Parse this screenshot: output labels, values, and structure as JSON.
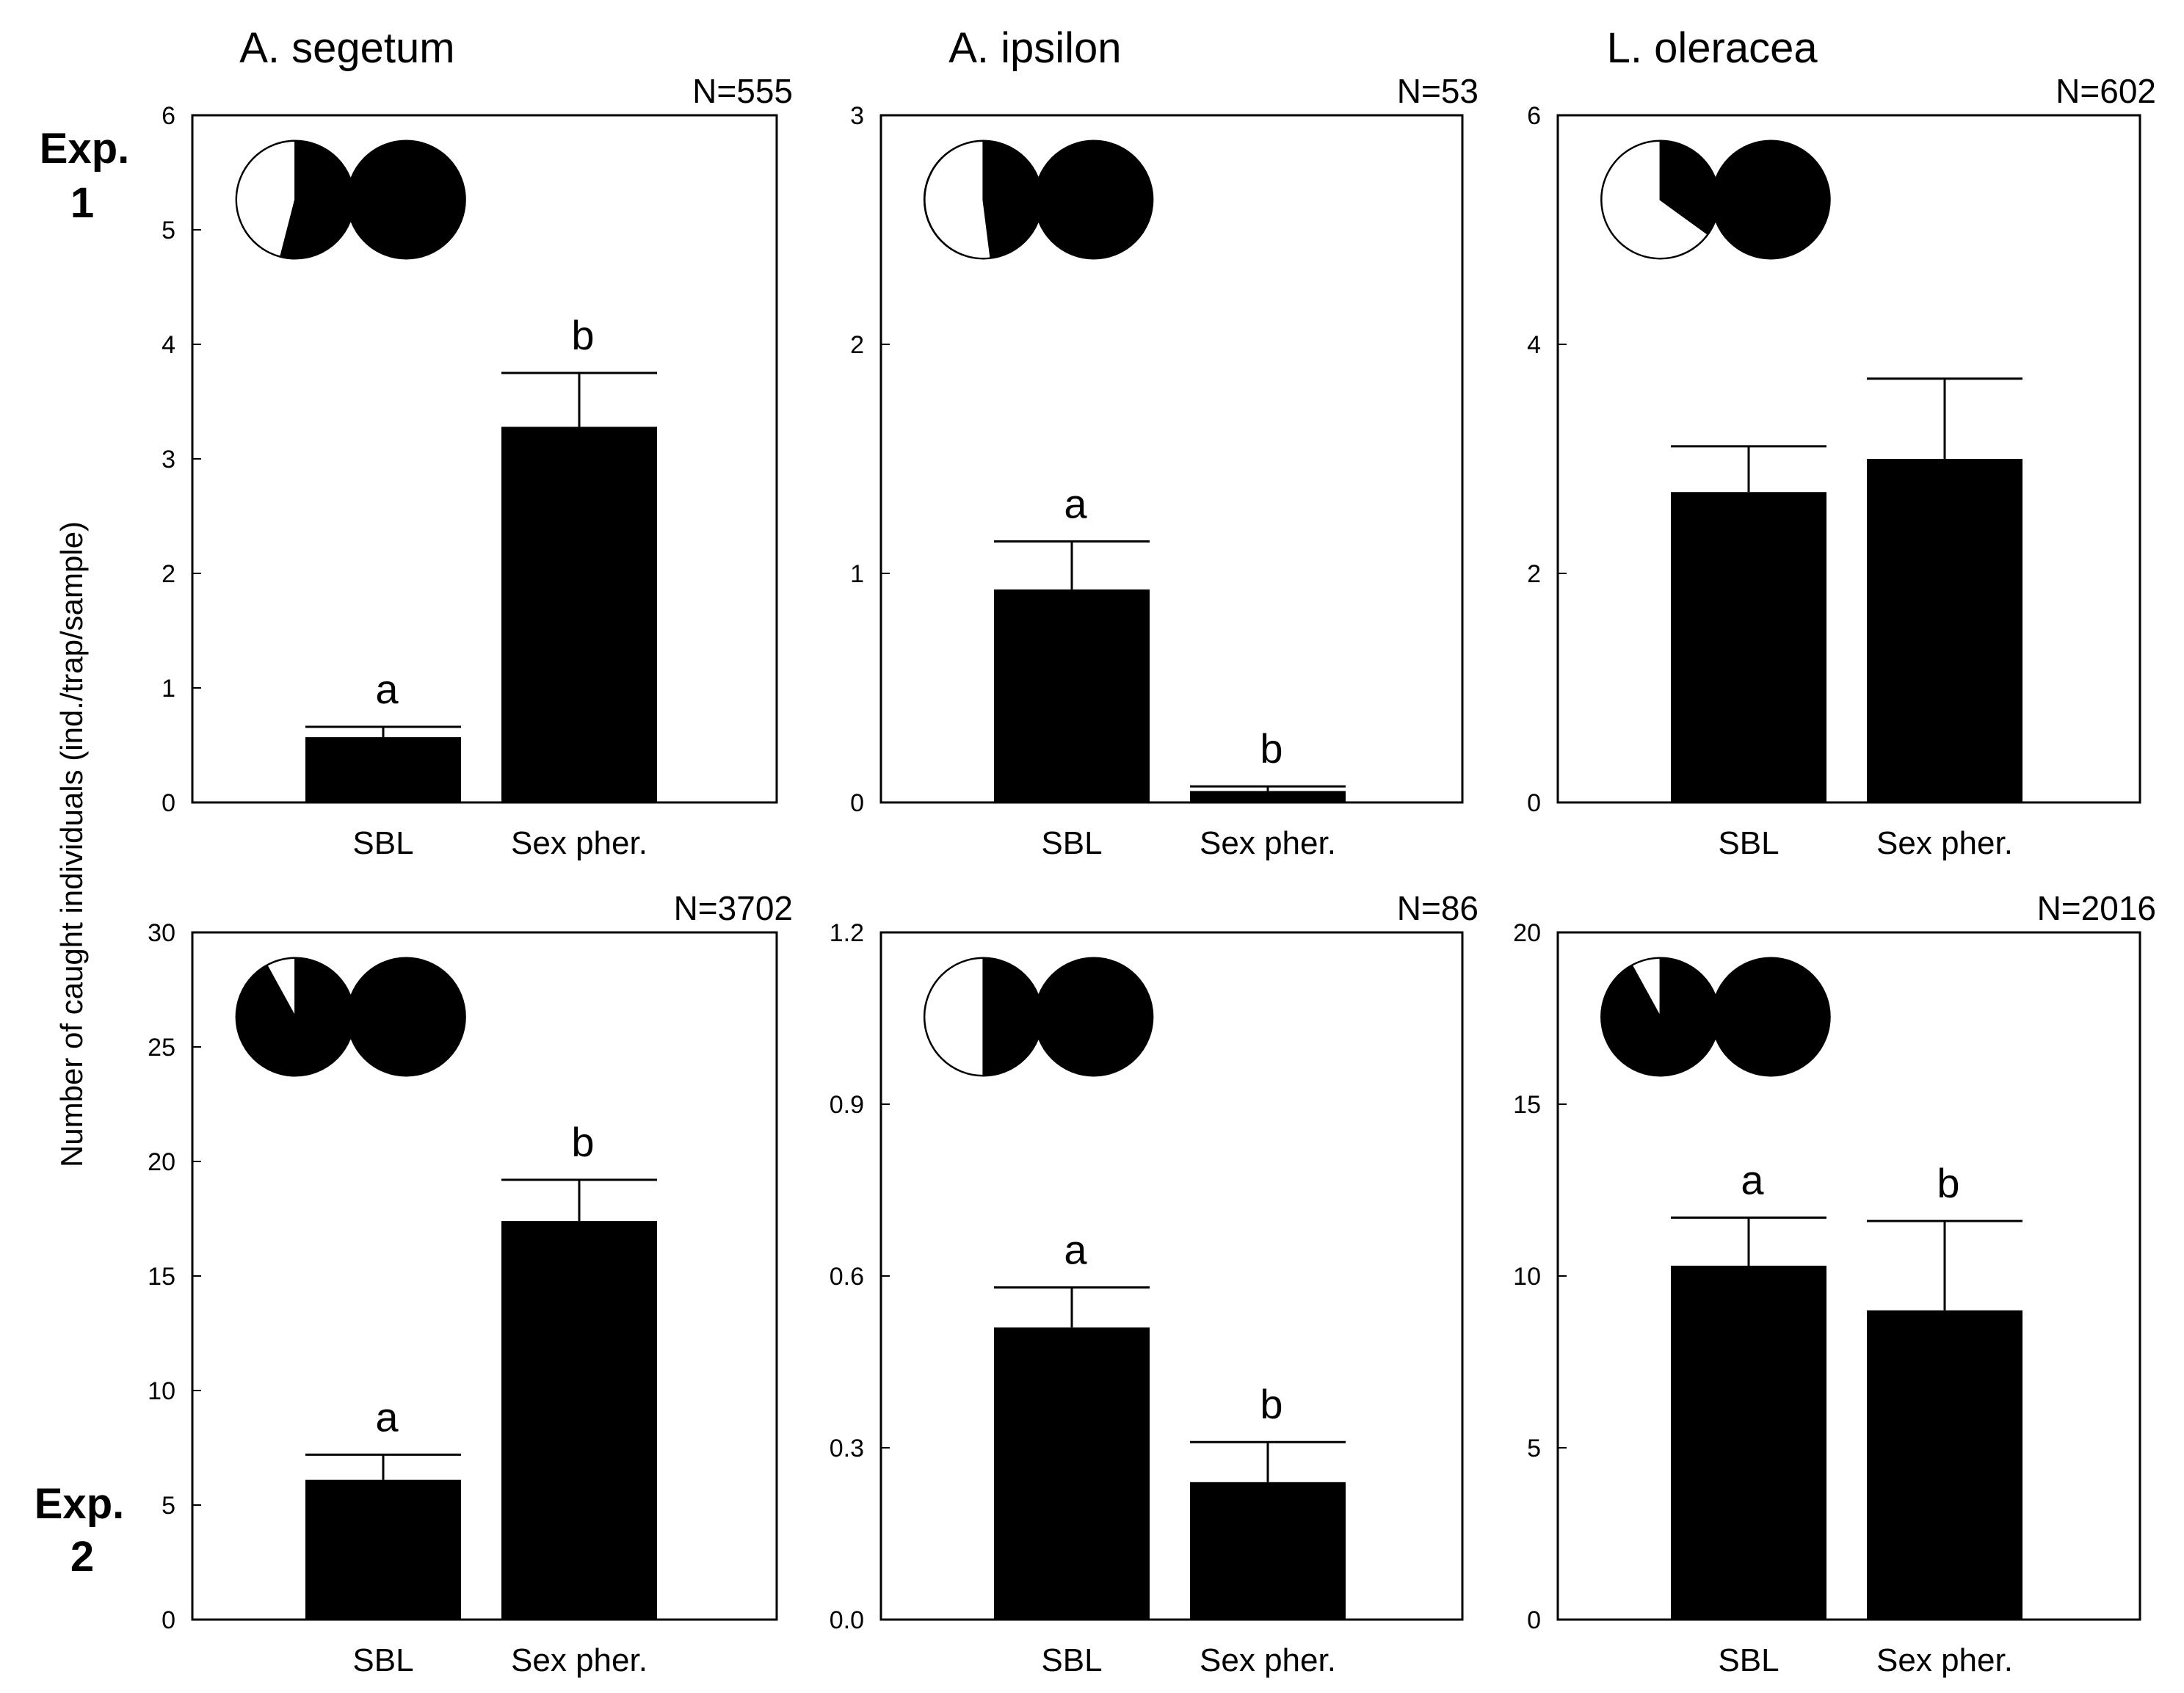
{
  "figure": {
    "y_axis_label": "Number of caught individuals (ind./trap/sample)",
    "experiment_labels": [
      {
        "line1": "Exp.",
        "line2": "1"
      },
      {
        "line1": "Exp.",
        "line2": "2"
      }
    ],
    "species_titles": [
      "A. segetum",
      "A. ipsilon",
      "L. oleracea"
    ]
  },
  "chart_data": [
    {
      "type": "bar",
      "experiment": "Exp. 1",
      "title": "A. segetum",
      "n_label": "N=555",
      "categories": [
        "SBL",
        "Sex pher."
      ],
      "values": [
        0.57,
        3.28
      ],
      "error": [
        0.09,
        0.47
      ],
      "letters": [
        "a",
        "b"
      ],
      "ylim": [
        0,
        6
      ],
      "yticks": [
        "0",
        "1",
        "2",
        "3",
        "4",
        "5",
        "6"
      ],
      "pie_female_fraction": [
        0.46,
        0.0
      ]
    },
    {
      "type": "bar",
      "experiment": "Exp. 1",
      "title": "A. ipsilon",
      "n_label": "N=53",
      "categories": [
        "SBL",
        "Sex pher."
      ],
      "values": [
        0.93,
        0.05
      ],
      "error": [
        0.21,
        0.02
      ],
      "letters": [
        "a",
        "b"
      ],
      "ylim": [
        0,
        3
      ],
      "yticks": [
        "0",
        "1",
        "2",
        "3"
      ],
      "pie_female_fraction": [
        0.52,
        0.0
      ]
    },
    {
      "type": "bar",
      "experiment": "Exp. 1",
      "title": "L. oleracea",
      "n_label": "N=602",
      "categories": [
        "SBL",
        "Sex pher."
      ],
      "values": [
        2.71,
        3.0
      ],
      "error": [
        0.4,
        0.7
      ],
      "letters": [
        "",
        ""
      ],
      "ylim": [
        0,
        6
      ],
      "yticks": [
        "0",
        "2",
        "4",
        "6"
      ],
      "pie_female_fraction": [
        0.65,
        0.0
      ]
    },
    {
      "type": "bar",
      "experiment": "Exp. 2",
      "title": "A. segetum",
      "n_label": "N=3702",
      "categories": [
        "SBL",
        "Sex pher."
      ],
      "values": [
        6.1,
        17.4
      ],
      "error": [
        1.1,
        1.8
      ],
      "letters": [
        "a",
        "b"
      ],
      "ylim": [
        0,
        30
      ],
      "yticks": [
        "0",
        "5",
        "10",
        "15",
        "20",
        "25",
        "30"
      ],
      "pie_female_fraction": [
        0.08,
        0.0
      ]
    },
    {
      "type": "bar",
      "experiment": "Exp. 2",
      "title": "A. ipsilon",
      "n_label": "N=86",
      "categories": [
        "SBL",
        "Sex pher."
      ],
      "values": [
        0.51,
        0.24
      ],
      "error": [
        0.07,
        0.07
      ],
      "letters": [
        "a",
        "b"
      ],
      "ylim": [
        0,
        1.2
      ],
      "yticks": [
        "0.0",
        "0.3",
        "0.6",
        "0.9",
        "1.2"
      ],
      "pie_female_fraction": [
        0.5,
        0.0
      ]
    },
    {
      "type": "bar",
      "experiment": "Exp. 2",
      "title": "L. oleracea",
      "n_label": "N=2016",
      "categories": [
        "SBL",
        "Sex pher."
      ],
      "values": [
        10.3,
        9.0
      ],
      "error": [
        1.4,
        2.6
      ],
      "letters": [
        "a",
        "b"
      ],
      "ylim": [
        0,
        20
      ],
      "yticks": [
        "0",
        "5",
        "10",
        "15",
        "20"
      ],
      "pie_female_fraction": [
        0.08,
        0.0
      ]
    }
  ]
}
